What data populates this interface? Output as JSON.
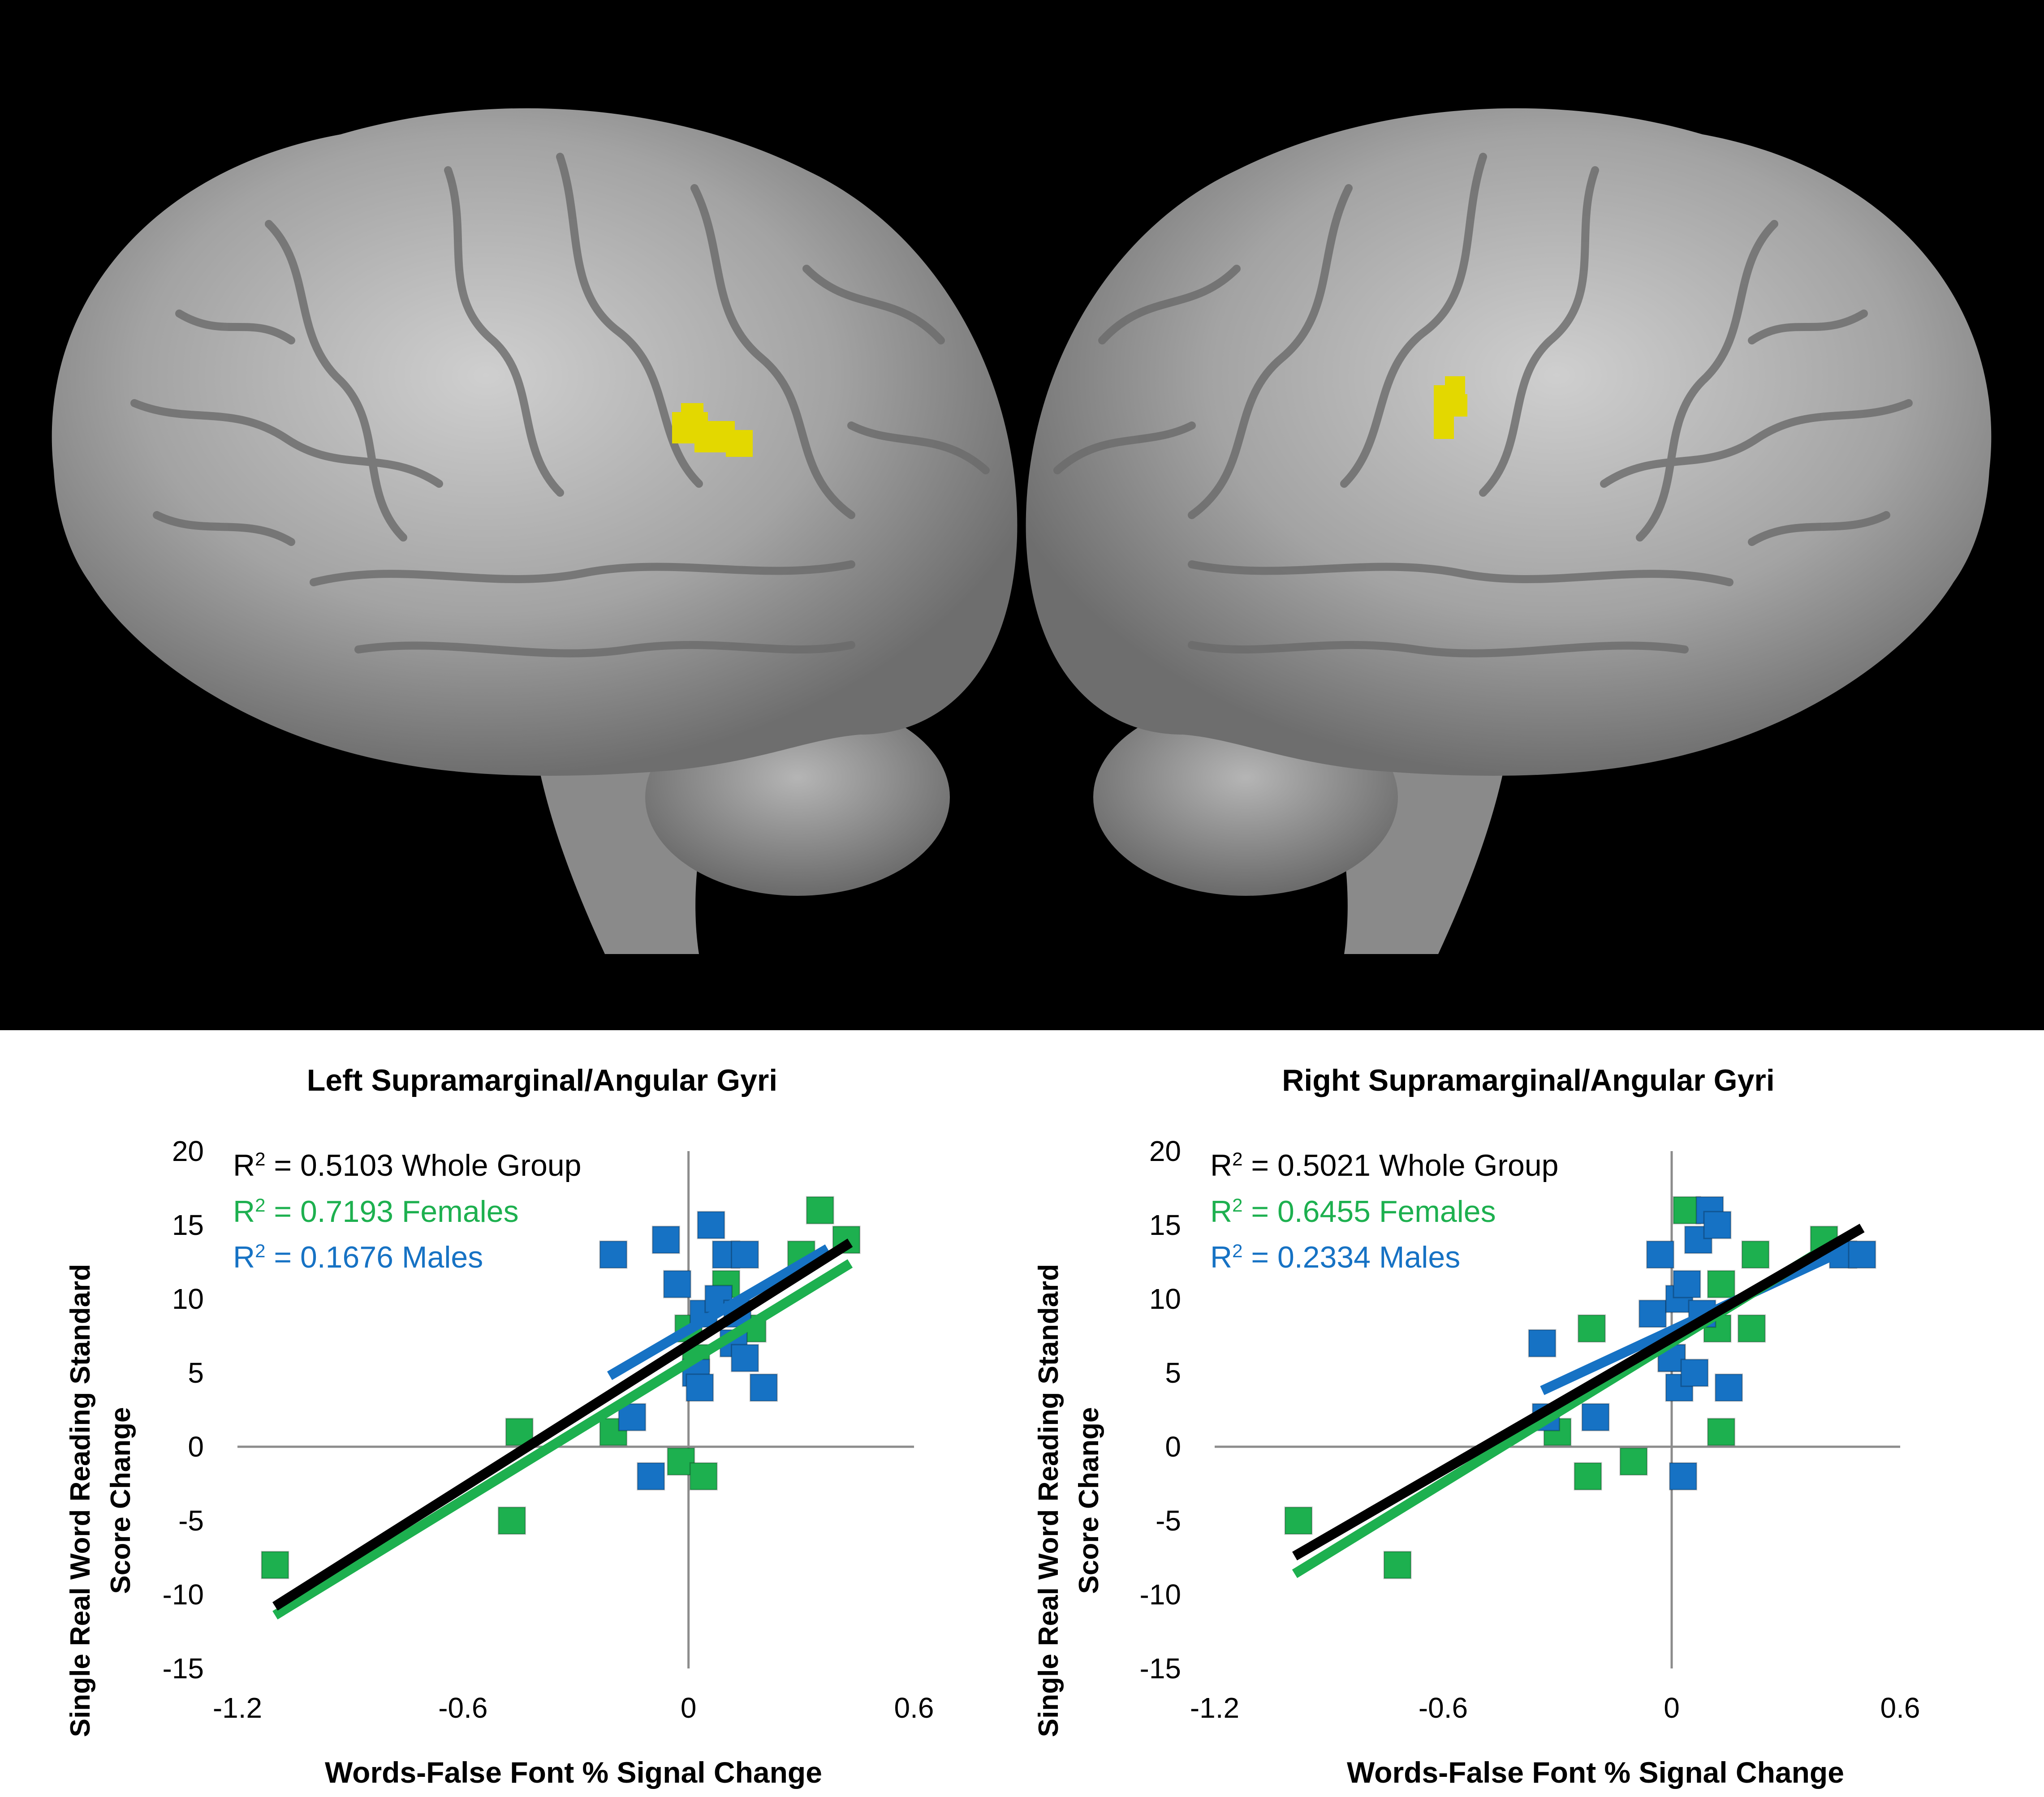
{
  "colors": {
    "whole": "#000000",
    "females": "#1db04f",
    "males": "#1672c4",
    "activation": "#e3d800",
    "brain": "#9c9c9c"
  },
  "brain_images": [
    {
      "name": "left-hemisphere",
      "activation": "yellow"
    },
    {
      "name": "right-hemisphere",
      "activation": "yellow"
    }
  ],
  "chart_data": [
    {
      "type": "scatter",
      "title": "Left Supramarginal/Angular Gyri",
      "xlabel": "Words-False Font % Signal Change",
      "ylabel_lines": [
        "Single Real Word Reading Standard",
        "Score Change"
      ],
      "xlim": [
        -1.2,
        0.6
      ],
      "ylim": [
        -15,
        20
      ],
      "xticks": [
        -1.2,
        -0.6,
        0,
        0.6
      ],
      "xtick_labels": [
        "-1.2",
        "-0.6",
        "0",
        "0.6"
      ],
      "yticks": [
        -15,
        -10,
        -5,
        0,
        5,
        10,
        15,
        20
      ],
      "ytick_labels": [
        "-15",
        "-10",
        "-5",
        "0",
        "5",
        "10",
        "15",
        "20"
      ],
      "annotations": [
        {
          "r2_label": "R",
          "sup": "2",
          "value": " = 0.5103 Whole Group",
          "group": "whole"
        },
        {
          "r2_label": "R",
          "sup": "2",
          "value": " = 0.7193 Females",
          "group": "females"
        },
        {
          "r2_label": "R",
          "sup": "2",
          "value": " = 0.1676 Males",
          "group": "males"
        }
      ],
      "series": [
        {
          "group": "females",
          "points": [
            [
              -1.1,
              -8
            ],
            [
              -0.47,
              -5
            ],
            [
              -0.45,
              1
            ],
            [
              -0.2,
              1
            ],
            [
              -0.02,
              -1
            ],
            [
              0.04,
              -2
            ],
            [
              0.0,
              8
            ],
            [
              0.02,
              6
            ],
            [
              0.1,
              11
            ],
            [
              0.17,
              8
            ],
            [
              0.3,
              13
            ],
            [
              0.35,
              16
            ],
            [
              0.42,
              14
            ]
          ]
        },
        {
          "group": "males",
          "points": [
            [
              -0.2,
              13
            ],
            [
              -0.15,
              2
            ],
            [
              -0.1,
              -2
            ],
            [
              -0.06,
              14
            ],
            [
              -0.03,
              11
            ],
            [
              0.02,
              5
            ],
            [
              0.03,
              4
            ],
            [
              0.04,
              9
            ],
            [
              0.06,
              15
            ],
            [
              0.08,
              10
            ],
            [
              0.1,
              13
            ],
            [
              0.15,
              13
            ],
            [
              0.12,
              7
            ],
            [
              0.15,
              6
            ],
            [
              0.2,
              4
            ],
            [
              0.13,
              9
            ]
          ]
        }
      ],
      "trendlines": [
        {
          "group": "males",
          "x": [
            -0.21,
            0.37
          ],
          "y": [
            4.8,
            13.4
          ]
        },
        {
          "group": "females",
          "x": [
            -1.1,
            0.43
          ],
          "y": [
            -11.4,
            12.4
          ]
        },
        {
          "group": "whole",
          "x": [
            -1.1,
            0.43
          ],
          "y": [
            -10.8,
            13.8
          ]
        }
      ]
    },
    {
      "type": "scatter",
      "title": "Right Supramarginal/Angular Gyri",
      "xlabel": "Words-False Font % Signal Change",
      "ylabel_lines": [
        "Single Real Word Reading Standard",
        "Score Change"
      ],
      "xlim": [
        -1.2,
        0.6
      ],
      "ylim": [
        -15,
        20
      ],
      "xticks": [
        -1.2,
        -0.6,
        0,
        0.6
      ],
      "xtick_labels": [
        "-1.2",
        "-0.6",
        "0",
        "0.6"
      ],
      "yticks": [
        -15,
        -10,
        -5,
        0,
        5,
        10,
        15,
        20
      ],
      "ytick_labels": [
        "-15",
        "-10",
        "-5",
        "0",
        "5",
        "10",
        "15",
        "20"
      ],
      "annotations": [
        {
          "r2_label": "R",
          "sup": "2",
          "value": " = 0.5021 Whole Group",
          "group": "whole"
        },
        {
          "r2_label": "R",
          "sup": "2",
          "value": " = 0.6455 Females",
          "group": "females"
        },
        {
          "r2_label": "R",
          "sup": "2",
          "value": " = 0.2334 Males",
          "group": "males"
        }
      ],
      "series": [
        {
          "group": "females",
          "points": [
            [
              -0.98,
              -5
            ],
            [
              -0.72,
              -8
            ],
            [
              -0.3,
              1
            ],
            [
              -0.22,
              -2
            ],
            [
              -0.21,
              8
            ],
            [
              -0.1,
              -1
            ],
            [
              0.0,
              6
            ],
            [
              0.04,
              16
            ],
            [
              0.12,
              8
            ],
            [
              0.13,
              11
            ],
            [
              0.13,
              1
            ],
            [
              0.21,
              8
            ],
            [
              0.22,
              13
            ],
            [
              0.4,
              14
            ]
          ]
        },
        {
          "group": "males",
          "points": [
            [
              -0.34,
              7
            ],
            [
              -0.33,
              2
            ],
            [
              -0.2,
              2
            ],
            [
              -0.05,
              9
            ],
            [
              -0.03,
              13
            ],
            [
              0.0,
              6
            ],
            [
              0.02,
              4
            ],
            [
              0.02,
              10
            ],
            [
              0.03,
              -2
            ],
            [
              0.04,
              11
            ],
            [
              0.06,
              5
            ],
            [
              0.07,
              14
            ],
            [
              0.1,
              16
            ],
            [
              0.12,
              15
            ],
            [
              0.15,
              4
            ],
            [
              0.45,
              13
            ],
            [
              0.5,
              13
            ],
            [
              0.08,
              9
            ]
          ]
        }
      ],
      "trendlines": [
        {
          "group": "males",
          "x": [
            -0.34,
            0.42
          ],
          "y": [
            3.8,
            12.9
          ]
        },
        {
          "group": "females",
          "x": [
            -0.99,
            0.42
          ],
          "y": [
            -8.6,
            13.7
          ]
        },
        {
          "group": "whole",
          "x": [
            -0.99,
            0.5
          ],
          "y": [
            -7.4,
            14.8
          ]
        }
      ]
    }
  ]
}
